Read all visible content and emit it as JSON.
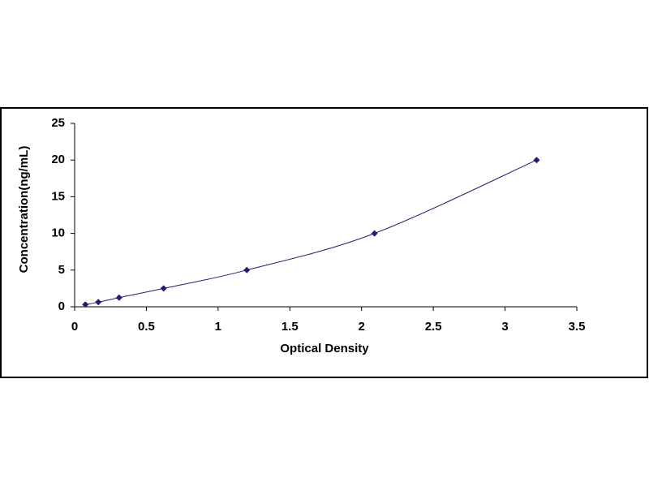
{
  "chart_data": {
    "type": "scatter",
    "line": true,
    "x_label": "Optical Density",
    "y_label": "Concentration(ng/mL)",
    "series": [
      {
        "color": "#1f1f6e",
        "x": [
          0.075,
          0.165,
          0.31,
          0.62,
          1.2,
          2.09,
          3.22
        ],
        "values": [
          0.31,
          0.63,
          1.25,
          2.5,
          5,
          10,
          20
        ]
      }
    ],
    "xlim": [
      0,
      3.5
    ],
    "xticks": [
      0,
      0.5,
      1,
      1.5,
      2,
      2.5,
      3,
      3.5
    ],
    "ylim": [
      0,
      25
    ],
    "yticks": [
      0,
      5,
      10,
      15,
      20,
      25
    ]
  }
}
